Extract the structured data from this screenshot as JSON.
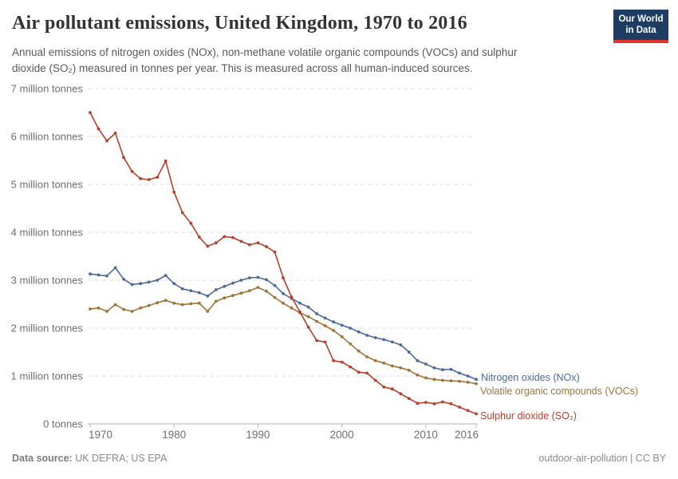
{
  "header": {
    "title": "Air pollutant emissions, United Kingdom, 1970 to 2016",
    "subtitle": "Annual emissions of nitrogen oxides (NOx), non-methane volatile organic compounds (VOCs) and sulphur\ndioxide (SO₂) measured in tonnes per year. This is measured across all human-induced sources.",
    "logo": {
      "line1": "Our World",
      "line2": "in Data",
      "bg_color": "#1d3d63",
      "accent_color": "#e0362e"
    }
  },
  "chart_data": {
    "type": "line",
    "title": "Air pollutant emissions, United Kingdom, 1970 to 2016",
    "xlabel": "",
    "ylabel": "tonnes per year",
    "grid": "horizontal-dashed",
    "legend_position": "right-end-labels",
    "ylim_tonnes": [
      0,
      7000000
    ],
    "ytick_labels": [
      "0 tonnes",
      "1 million tonnes",
      "2 million tonnes",
      "3 million tonnes",
      "4 million tonnes",
      "5 million tonnes",
      "6 million tonnes",
      "7 million tonnes"
    ],
    "xtick_labels": [
      "1970",
      "1980",
      "1990",
      "2000",
      "2010",
      "2016"
    ],
    "xticks": [
      1970,
      1980,
      1990,
      2000,
      2010,
      2016
    ],
    "x": [
      1970,
      1971,
      1972,
      1973,
      1974,
      1975,
      1976,
      1977,
      1978,
      1979,
      1980,
      1981,
      1982,
      1983,
      1984,
      1985,
      1986,
      1987,
      1988,
      1989,
      1990,
      1991,
      1992,
      1993,
      1994,
      1995,
      1996,
      1997,
      1998,
      1999,
      2000,
      2001,
      2002,
      2003,
      2004,
      2005,
      2006,
      2007,
      2008,
      2009,
      2010,
      2011,
      2012,
      2013,
      2014,
      2015,
      2016
    ],
    "unit": "million tonnes",
    "series": [
      {
        "id": "nox",
        "name": "Nitrogen oxides (NOx)",
        "color": "#4C6A9C",
        "values": [
          3.13,
          3.11,
          3.09,
          3.26,
          3.02,
          2.91,
          2.93,
          2.96,
          3.0,
          3.1,
          2.93,
          2.82,
          2.78,
          2.74,
          2.67,
          2.8,
          2.87,
          2.94,
          3.0,
          3.05,
          3.06,
          3.01,
          2.89,
          2.72,
          2.62,
          2.52,
          2.44,
          2.3,
          2.21,
          2.13,
          2.06,
          2.0,
          1.92,
          1.85,
          1.8,
          1.76,
          1.71,
          1.65,
          1.5,
          1.32,
          1.25,
          1.17,
          1.13,
          1.14,
          1.06,
          1.0,
          0.93
        ]
      },
      {
        "id": "vocs",
        "name": "Volatile organic compounds (VOCs)",
        "color": "#9E7439",
        "values": [
          2.4,
          2.42,
          2.35,
          2.49,
          2.39,
          2.35,
          2.42,
          2.47,
          2.53,
          2.58,
          2.52,
          2.49,
          2.51,
          2.52,
          2.35,
          2.56,
          2.63,
          2.68,
          2.73,
          2.78,
          2.85,
          2.77,
          2.64,
          2.52,
          2.42,
          2.32,
          2.24,
          2.14,
          2.05,
          1.95,
          1.82,
          1.67,
          1.52,
          1.4,
          1.32,
          1.27,
          1.21,
          1.17,
          1.12,
          1.02,
          0.96,
          0.93,
          0.91,
          0.9,
          0.89,
          0.87,
          0.84
        ]
      },
      {
        "id": "so2",
        "name": "Sulphur dioxide (SO₂)",
        "color": "#B6402B",
        "values": [
          6.5,
          6.16,
          5.91,
          6.07,
          5.56,
          5.27,
          5.12,
          5.1,
          5.15,
          5.49,
          4.84,
          4.41,
          4.19,
          3.9,
          3.71,
          3.78,
          3.91,
          3.89,
          3.81,
          3.74,
          3.78,
          3.7,
          3.59,
          3.05,
          2.65,
          2.34,
          2.02,
          1.74,
          1.71,
          1.32,
          1.29,
          1.19,
          1.08,
          1.06,
          0.91,
          0.77,
          0.73,
          0.63,
          0.53,
          0.43,
          0.45,
          0.42,
          0.46,
          0.42,
          0.35,
          0.28,
          0.21
        ]
      }
    ]
  },
  "footer": {
    "source_label": "Data source:",
    "source_value": " UK DEFRA; US EPA",
    "right_text": "outdoor-air-pollution | CC BY"
  }
}
